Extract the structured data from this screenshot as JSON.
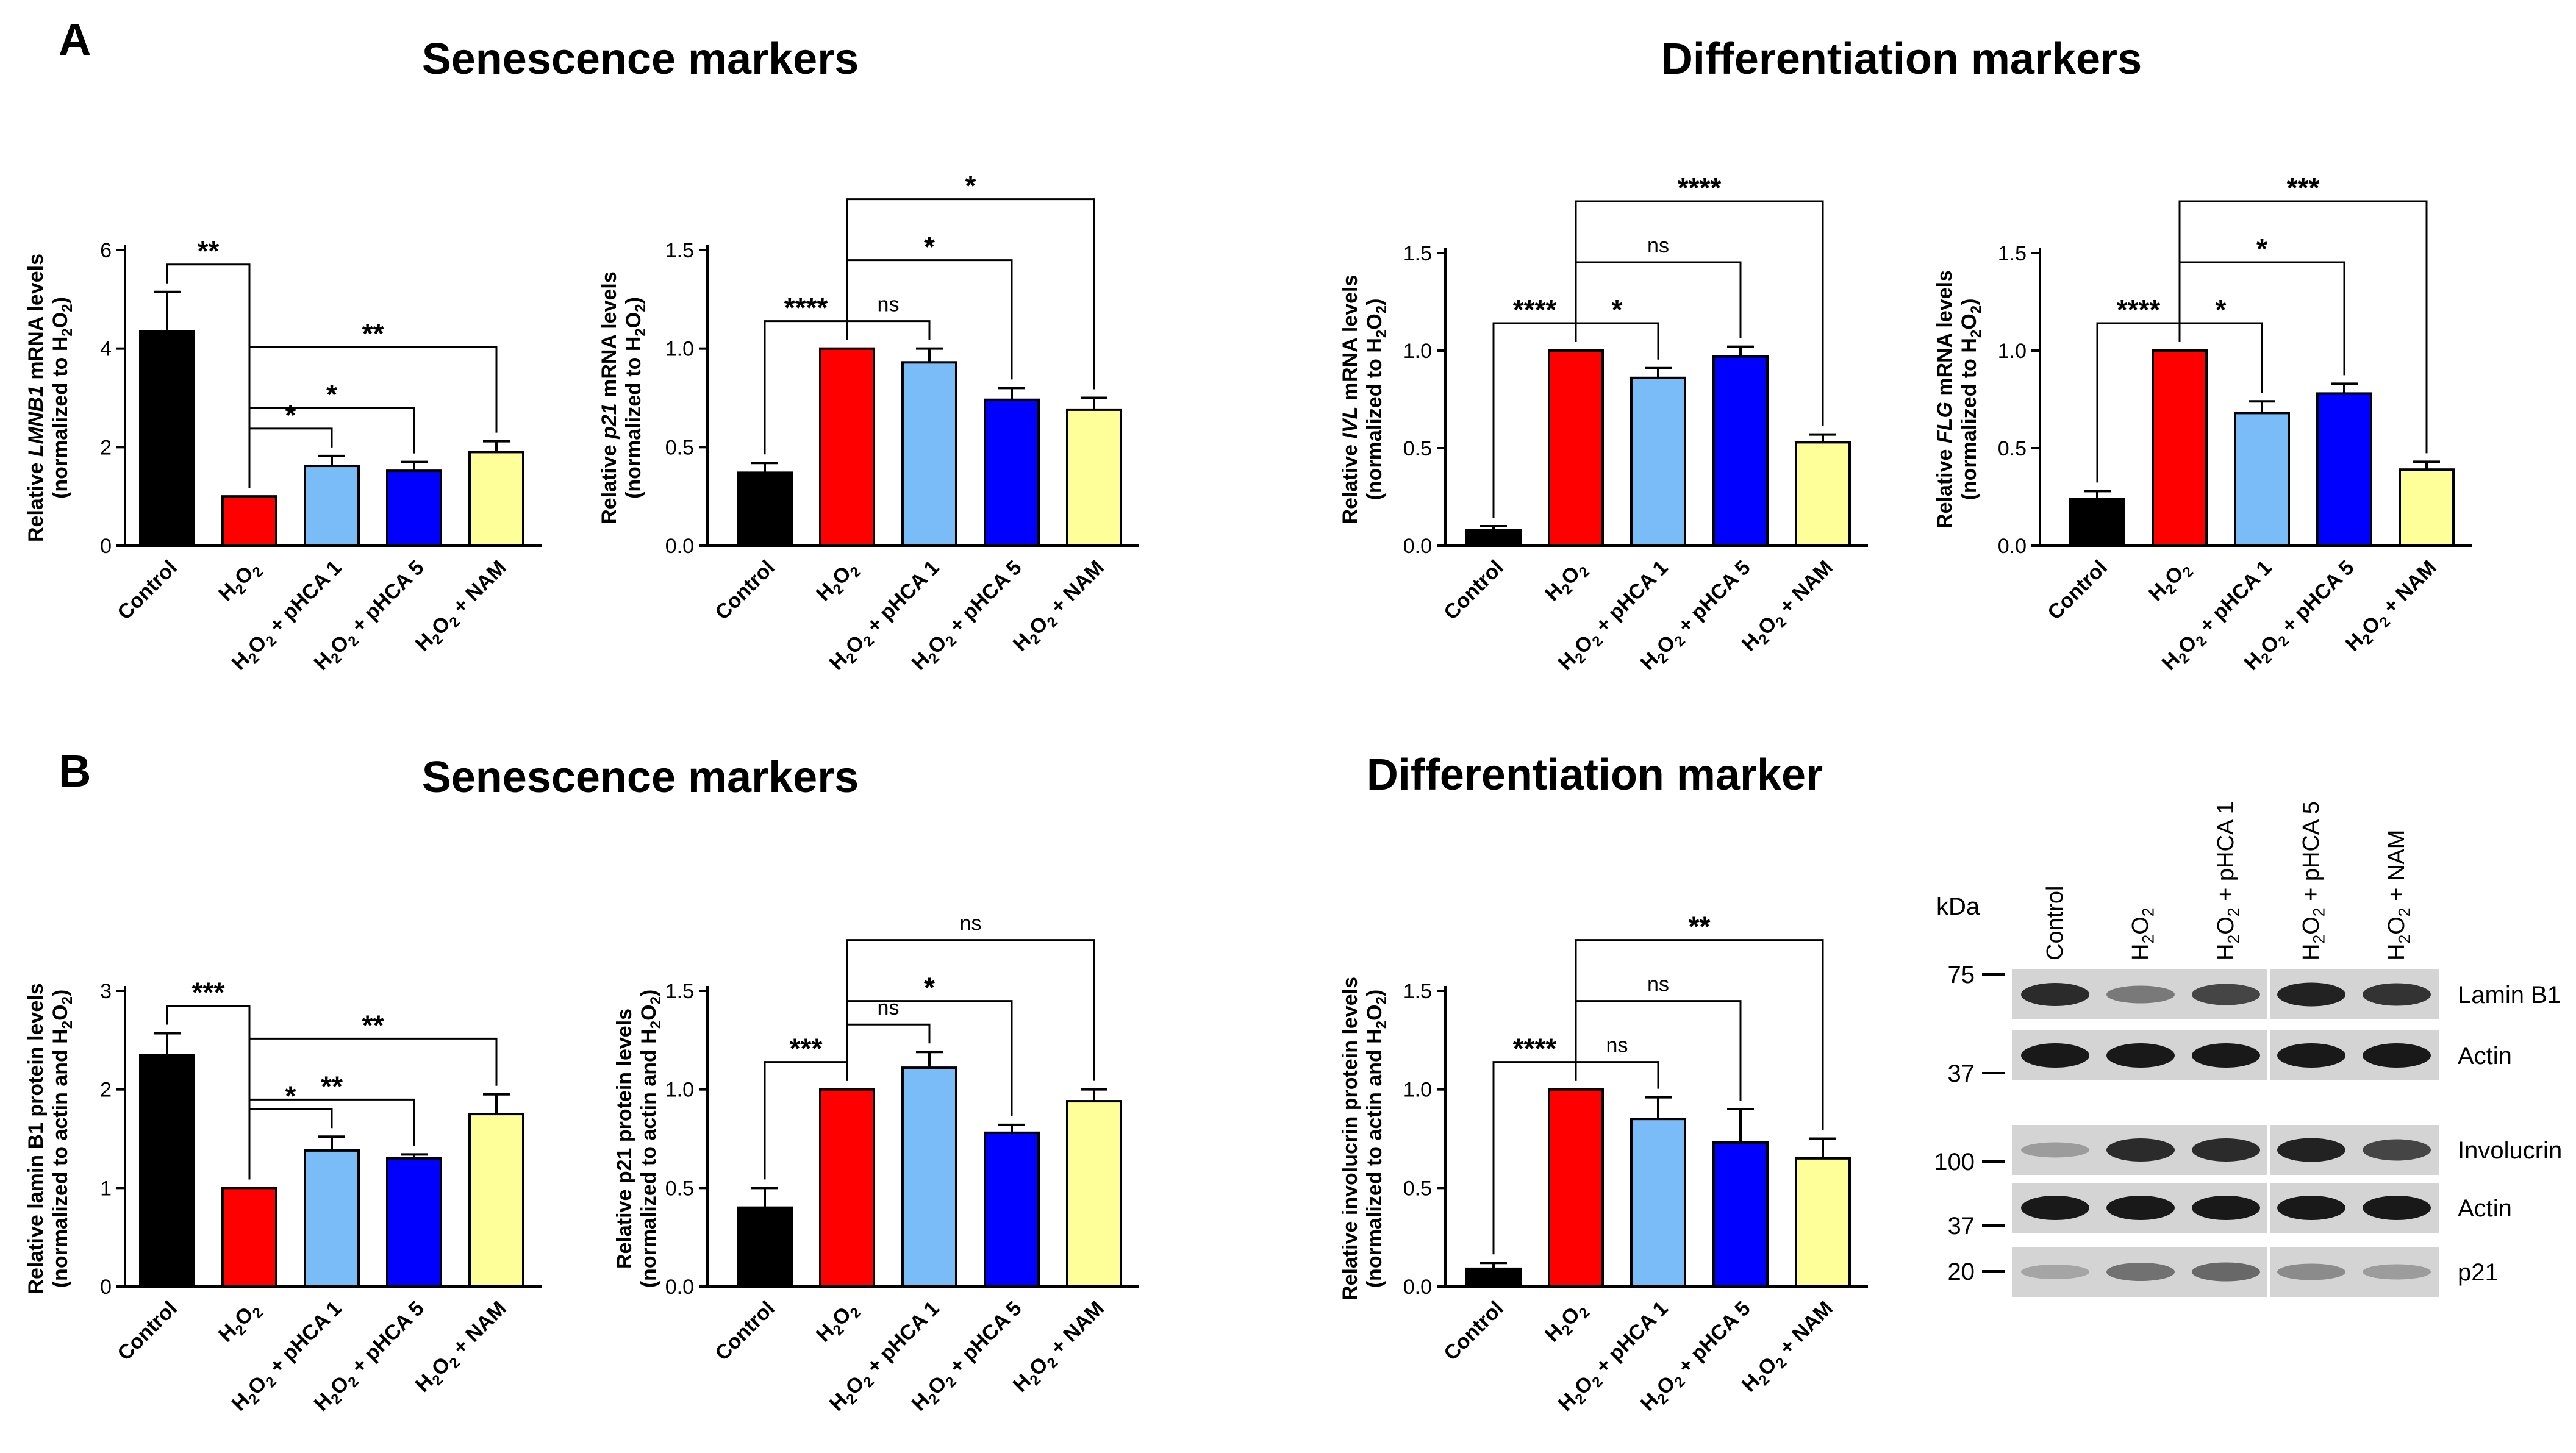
{
  "panels": {
    "A": {
      "letter": "A",
      "section_titles": [
        "Senescence markers",
        "Differentiation markers"
      ]
    },
    "B": {
      "letter": "B",
      "section_titles": [
        "Senescence markers",
        "Differentiation marker"
      ]
    }
  },
  "colors": {
    "control": "#000000",
    "h2o2": "#ff0000",
    "phca1": "#79bcf7",
    "phca5": "#0000ff",
    "nam": "#ffff99"
  },
  "chart_data": [
    {
      "type": "bar",
      "panel": "A",
      "categories": [
        "Control",
        "H₂O₂",
        "H₂O₂ + pHCA 1",
        "H₂O₂ + pHCA 5",
        "H₂O₂ + NAM"
      ],
      "values": [
        4.35,
        1.0,
        1.62,
        1.52,
        1.9
      ],
      "errors": [
        0.8,
        0,
        0.2,
        0.18,
        0.22
      ],
      "ylabel": "Relative LMNB1 mRNA levels (normalized to H₂O₂)",
      "ylabel_line1_pre": "Relative ",
      "ylabel_line1_gene": "LMNB1",
      "ylabel_line1_post": " mRNA levels",
      "ylabel_line2": "(normalized to H₂O₂)",
      "ylim": [
        0,
        6
      ],
      "yticks": [
        "0",
        "2",
        "4",
        "6"
      ],
      "significance": [
        {
          "from": 0,
          "to": 1,
          "label": "**"
        },
        {
          "from": 1,
          "to": 2,
          "label": "*"
        },
        {
          "from": 1,
          "to": 3,
          "label": "*"
        },
        {
          "from": 1,
          "to": 4,
          "label": "**"
        }
      ]
    },
    {
      "type": "bar",
      "panel": "A",
      "categories": [
        "Control",
        "H₂O₂",
        "H₂O₂ + pHCA 1",
        "H₂O₂ + pHCA 5",
        "H₂O₂ + NAM"
      ],
      "values": [
        0.37,
        1.0,
        0.93,
        0.74,
        0.69
      ],
      "errors": [
        0.05,
        0,
        0.07,
        0.06,
        0.06
      ],
      "ylabel": "Relative p21 mRNA levels (normalized to H₂O₂)",
      "ylabel_line1_pre": "Relative ",
      "ylabel_line1_gene": "p21",
      "ylabel_line1_post": " mRNA levels",
      "ylabel_line2": "(normalized to H₂O₂)",
      "ylim": [
        0,
        1.5
      ],
      "yticks": [
        "0.0",
        "0.5",
        "1.0",
        "1.5"
      ],
      "significance": [
        {
          "from": 0,
          "to": 1,
          "label": "****"
        },
        {
          "from": 1,
          "to": 2,
          "label": "ns"
        },
        {
          "from": 1,
          "to": 3,
          "label": "*"
        },
        {
          "from": 1,
          "to": 4,
          "label": "*"
        }
      ]
    },
    {
      "type": "bar",
      "panel": "A",
      "categories": [
        "Control",
        "H₂O₂",
        "H₂O₂ + pHCA 1",
        "H₂O₂ + pHCA 5",
        "H₂O₂ + NAM"
      ],
      "values": [
        0.08,
        1.0,
        0.86,
        0.97,
        0.53
      ],
      "errors": [
        0.02,
        0,
        0.05,
        0.05,
        0.04
      ],
      "ylabel": "Relative IVL mRNA levels (normalized to H₂O₂)",
      "ylabel_line1_pre": "Relative ",
      "ylabel_line1_gene": "IVL",
      "ylabel_line1_post": " mRNA levels",
      "ylabel_line2": "(normalized to H₂O₂)",
      "ylim": [
        0,
        1.5
      ],
      "yticks": [
        "0.0",
        "0.5",
        "1.0",
        "1.5"
      ],
      "significance": [
        {
          "from": 0,
          "to": 1,
          "label": "****"
        },
        {
          "from": 1,
          "to": 2,
          "label": "*"
        },
        {
          "from": 1,
          "to": 3,
          "label": "ns"
        },
        {
          "from": 1,
          "to": 4,
          "label": "****"
        }
      ]
    },
    {
      "type": "bar",
      "panel": "A",
      "categories": [
        "Control",
        "H₂O₂",
        "H₂O₂ + pHCA 1",
        "H₂O₂ + pHCA 5",
        "H₂O₂ + NAM"
      ],
      "values": [
        0.24,
        1.0,
        0.68,
        0.78,
        0.39
      ],
      "errors": [
        0.04,
        0,
        0.06,
        0.05,
        0.04
      ],
      "ylabel": "Relative FLG mRNA levels (normalized to H₂O₂)",
      "ylabel_line1_pre": "Relative ",
      "ylabel_line1_gene": "FLG",
      "ylabel_line1_post": " mRNA levels",
      "ylabel_line2": "(normalized to H₂O₂)",
      "ylim": [
        0,
        1.5
      ],
      "yticks": [
        "0.0",
        "0.5",
        "1.0",
        "1.5"
      ],
      "significance": [
        {
          "from": 0,
          "to": 1,
          "label": "****"
        },
        {
          "from": 1,
          "to": 2,
          "label": "*"
        },
        {
          "from": 1,
          "to": 3,
          "label": "*"
        },
        {
          "from": 1,
          "to": 4,
          "label": "***"
        }
      ]
    },
    {
      "type": "bar",
      "panel": "B",
      "categories": [
        "Control",
        "H₂O₂",
        "H₂O₂ + pHCA 1",
        "H₂O₂ + pHCA 5",
        "H₂O₂ + NAM"
      ],
      "values": [
        2.35,
        1.0,
        1.38,
        1.3,
        1.75
      ],
      "errors": [
        0.22,
        0,
        0.14,
        0.04,
        0.2
      ],
      "ylabel": "Relative lamin B1 protein levels (normalized to actin and H₂O₂)",
      "ylabel_line1_pre": "Relative lamin B1 protein levels",
      "ylabel_line1_gene": "",
      "ylabel_line1_post": "",
      "ylabel_line2": "(normalized to actin and H₂O₂)",
      "ylim": [
        0,
        3
      ],
      "yticks": [
        "0",
        "1",
        "2",
        "3"
      ],
      "significance": [
        {
          "from": 0,
          "to": 1,
          "label": "***"
        },
        {
          "from": 1,
          "to": 2,
          "label": "*"
        },
        {
          "from": 1,
          "to": 3,
          "label": "**"
        },
        {
          "from": 1,
          "to": 4,
          "label": "**"
        }
      ]
    },
    {
      "type": "bar",
      "panel": "B",
      "categories": [
        "Control",
        "H₂O₂",
        "H₂O₂ + pHCA 1",
        "H₂O₂ + pHCA 5",
        "H₂O₂ + NAM"
      ],
      "values": [
        0.4,
        1.0,
        1.11,
        0.78,
        0.94
      ],
      "errors": [
        0.1,
        0,
        0.08,
        0.04,
        0.06
      ],
      "ylabel": "Relative p21 protein levels (normalized to actin and H₂O₂)",
      "ylabel_line1_pre": "Relative p21 protein  levels",
      "ylabel_line1_gene": "",
      "ylabel_line1_post": "",
      "ylabel_line2": "(normalized to actin and H₂O₂)",
      "ylim": [
        0,
        1.5
      ],
      "yticks": [
        "0.0",
        "0.5",
        "1.0",
        "1.5"
      ],
      "significance": [
        {
          "from": 0,
          "to": 1,
          "label": "***"
        },
        {
          "from": 1,
          "to": 2,
          "label": "ns"
        },
        {
          "from": 1,
          "to": 3,
          "label": "*"
        },
        {
          "from": 1,
          "to": 4,
          "label": "ns"
        }
      ]
    },
    {
      "type": "bar",
      "panel": "B",
      "categories": [
        "Control",
        "H₂O₂",
        "H₂O₂ + pHCA 1",
        "H₂O₂ + pHCA 5",
        "H₂O₂ + NAM"
      ],
      "values": [
        0.09,
        1.0,
        0.85,
        0.73,
        0.65
      ],
      "errors": [
        0.03,
        0,
        0.11,
        0.17,
        0.1
      ],
      "ylabel": "Relative involucrin protein levels (normalized to actin and H₂O₂)",
      "ylabel_line1_pre": "Relative involucrin protein levels",
      "ylabel_line1_gene": "",
      "ylabel_line1_post": "",
      "ylabel_line2": "(normalized to actin and H₂O₂)",
      "ylim": [
        0,
        1.5
      ],
      "yticks": [
        "0.0",
        "0.5",
        "1.0",
        "1.5"
      ],
      "significance": [
        {
          "from": 0,
          "to": 1,
          "label": "****"
        },
        {
          "from": 1,
          "to": 2,
          "label": "ns"
        },
        {
          "from": 1,
          "to": 3,
          "label": "ns"
        },
        {
          "from": 1,
          "to": 4,
          "label": "**"
        }
      ]
    }
  ],
  "blot": {
    "unit_label": "kDa",
    "lanes": [
      "Control",
      "H₂O₂",
      "H₂O₂ + pHCA 1",
      "H₂O₂ + pHCA 5",
      "H₂O₂ + NAM"
    ],
    "markers": [
      "75",
      "37",
      "100",
      "37",
      "20"
    ],
    "rows": [
      {
        "label": "Lamin B1",
        "intensity": [
          0.9,
          0.45,
          0.75,
          0.95,
          0.85
        ]
      },
      {
        "label": "Actin",
        "intensity": [
          1,
          1,
          1,
          1,
          1
        ]
      },
      {
        "label": "Involucrin",
        "intensity": [
          0.25,
          0.9,
          0.9,
          0.95,
          0.75
        ]
      },
      {
        "label": "Actin",
        "intensity": [
          1,
          1,
          1,
          1,
          1
        ]
      },
      {
        "label": "p21",
        "intensity": [
          0.2,
          0.5,
          0.55,
          0.35,
          0.25
        ]
      }
    ]
  }
}
